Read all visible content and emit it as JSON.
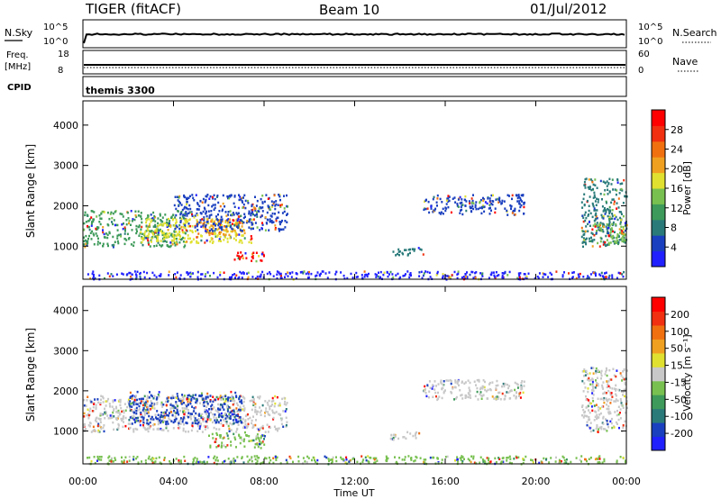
{
  "header": {
    "station": "TIGER (fitACF)",
    "beam": "Beam 10",
    "date": "01/Jul/2012"
  },
  "panels": {
    "nsky": {
      "label": "N.Sky",
      "right_label": "N.Search",
      "ticks": [
        "10^5",
        "10^0"
      ],
      "right_ticks": [
        "10^5",
        "10^0"
      ]
    },
    "freq": {
      "label_line1": "Freq.",
      "label_line2": "[MHz]",
      "ticks": [
        "18",
        "8"
      ],
      "right_label": "Nave",
      "right_ticks": [
        "60",
        "0"
      ]
    },
    "cpid": {
      "label": "CPID",
      "value": "themis 3300"
    }
  },
  "chart_data": [
    {
      "type": "heatmap",
      "name": "power",
      "xlabel": "Time UT",
      "ylabel": "Slant Range [km]",
      "x_ticks": [
        "00:00",
        "04:00",
        "08:00",
        "12:00",
        "16:00",
        "20:00",
        "00:00"
      ],
      "xlim_hours": [
        0,
        24
      ],
      "y_ticks": [
        1000,
        2000,
        3000,
        4000
      ],
      "ylim": [
        180,
        4600
      ],
      "colorbar": {
        "label": "Power [dB]",
        "ticks": [
          "28",
          "24",
          "20",
          "16",
          "12",
          "8",
          "4"
        ],
        "colors": [
          "#2020ff",
          "#1a3fbf",
          "#2a7a7a",
          "#3d9a5a",
          "#78c050",
          "#e0e030",
          "#f0a020",
          "#f07010",
          "#f03010",
          "#ff0000"
        ]
      },
      "regions": [
        {
          "t0": 0.0,
          "t1": 4.5,
          "r0": 1000,
          "r1": 1900,
          "color": "#3d9a5a"
        },
        {
          "t0": 2.5,
          "t1": 7.5,
          "r0": 1100,
          "r1": 1700,
          "color": "#e0e030"
        },
        {
          "t0": 5.0,
          "t1": 7.2,
          "r0": 1300,
          "r1": 1700,
          "color": "#f0a020"
        },
        {
          "t0": 6.6,
          "t1": 8.0,
          "r0": 650,
          "r1": 900,
          "color": "#ff0000"
        },
        {
          "t0": 4.0,
          "t1": 9.0,
          "r0": 1400,
          "r1": 2300,
          "color": "#1a3fbf"
        },
        {
          "t0": 15.0,
          "t1": 19.5,
          "r0": 1800,
          "r1": 2300,
          "color": "#1a3fbf"
        },
        {
          "t0": 13.5,
          "t1": 15.0,
          "r0": 800,
          "r1": 1000,
          "color": "#2a7a7a"
        },
        {
          "t0": 22.0,
          "t1": 24.0,
          "r0": 1000,
          "r1": 2700,
          "color": "#2a7a7a"
        },
        {
          "t0": 22.5,
          "t1": 24.0,
          "r0": 1100,
          "r1": 1600,
          "color": "#78c050"
        },
        {
          "t0": 0.0,
          "t1": 24.0,
          "r0": 200,
          "r1": 400,
          "color": "#2020ff"
        }
      ]
    },
    {
      "type": "heatmap",
      "name": "velocity",
      "xlabel": "Time UT",
      "ylabel": "Slant Range [km]",
      "x_ticks": [
        "00:00",
        "04:00",
        "08:00",
        "12:00",
        "16:00",
        "20:00",
        "00:00"
      ],
      "xlim_hours": [
        0,
        24
      ],
      "y_ticks": [
        1000,
        2000,
        3000,
        4000
      ],
      "ylim": [
        180,
        4600
      ],
      "colorbar": {
        "label": "Velocity [m s⁻¹]",
        "ticks": [
          "200",
          "100",
          "50",
          "15",
          "-15",
          "-50",
          "-100",
          "-200"
        ],
        "colors": [
          "#2020ff",
          "#1a3fbf",
          "#2a7a7a",
          "#3d9a5a",
          "#78c050",
          "#c8c8c8",
          "#e0e030",
          "#f0a020",
          "#f07010",
          "#f03010",
          "#ff0000"
        ]
      },
      "regions": [
        {
          "t0": 0.0,
          "t1": 9.0,
          "r0": 1000,
          "r1": 1900,
          "color": "#c8c8c8"
        },
        {
          "t0": 5.5,
          "t1": 8.0,
          "r0": 600,
          "r1": 1000,
          "color": "#78c050"
        },
        {
          "t0": 2.0,
          "t1": 7.0,
          "r0": 1200,
          "r1": 2000,
          "color": "#1a3fbf"
        },
        {
          "t0": 15.0,
          "t1": 19.5,
          "r0": 1800,
          "r1": 2300,
          "color": "#c8c8c8"
        },
        {
          "t0": 13.5,
          "t1": 15.0,
          "r0": 800,
          "r1": 1000,
          "color": "#c8c8c8"
        },
        {
          "t0": 22.0,
          "t1": 24.0,
          "r0": 1000,
          "r1": 2600,
          "color": "#c8c8c8"
        },
        {
          "t0": 0.0,
          "t1": 24.0,
          "r0": 200,
          "r1": 400,
          "color": "#78c050"
        }
      ]
    }
  ]
}
